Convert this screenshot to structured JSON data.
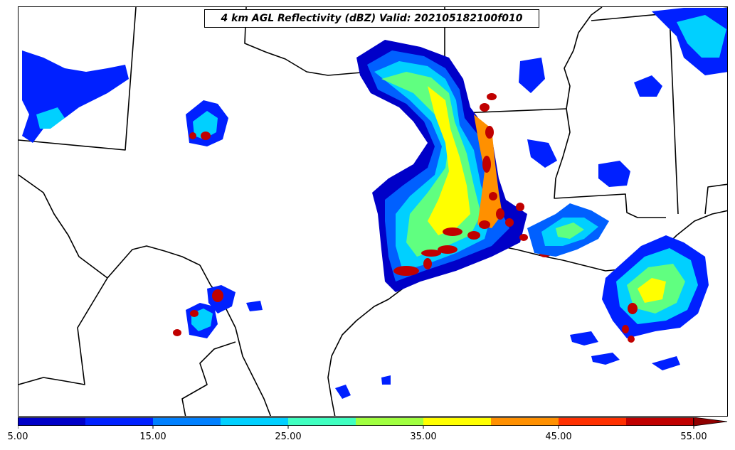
{
  "title": "4 km AGL Reflectivity (dBZ) Valid: 202105182100f010",
  "colorbar": {
    "colors": [
      "#0000c8",
      "#0020ff",
      "#0080ff",
      "#00d0ff",
      "#40ffc0",
      "#a0ff40",
      "#ffff00",
      "#ff9000",
      "#ff3000",
      "#c00000"
    ],
    "extend_color": "#900000",
    "ticks": [
      "5.00",
      "15.00",
      "25.00",
      "35.00",
      "45.00",
      "55.00"
    ],
    "min": 5,
    "max": 55,
    "step": 5
  }
}
